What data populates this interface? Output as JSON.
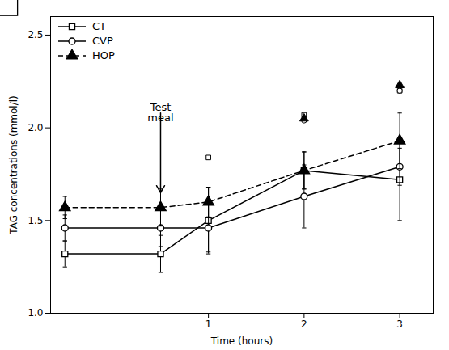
{
  "chart_data": {
    "type": "line",
    "xlabel": "Time (hours)",
    "ylabel": "TAG concentrations (mmol/l)",
    "xlim": [
      -0.65,
      3.35
    ],
    "xticks": [
      1,
      2,
      3
    ],
    "ylim": [
      1.0,
      2.6
    ],
    "yticks": [
      {
        "value": 1.0,
        "label": "1.0"
      },
      1.5,
      {
        "value": 2.0,
        "label": "2.0"
      },
      2.5
    ],
    "grid": false,
    "legend": "upper left",
    "x": [
      -0.5,
      0.5,
      1,
      2,
      3
    ],
    "series": [
      {
        "name": "CT",
        "type": "line",
        "color": "black",
        "marker": "square-open",
        "line_style": "solid",
        "values": [
          1.32,
          1.32,
          1.5,
          1.77,
          1.72
        ],
        "yerr": [
          0.07,
          0.1,
          0.18,
          0.1,
          0.22
        ]
      },
      {
        "name": "CVP",
        "type": "line",
        "color": "black",
        "marker": "circle-open",
        "line_style": "solid",
        "values": [
          1.46,
          1.46,
          1.46,
          1.63,
          1.79
        ],
        "yerr": [
          0.07,
          0.1,
          0.13,
          0.17,
          0.1
        ]
      },
      {
        "name": "HOP",
        "type": "line",
        "color": "black",
        "marker": "triangle-filled",
        "line_style": "dashed",
        "values": [
          1.57,
          1.57,
          1.6,
          1.77,
          1.93
        ],
        "yerr": [
          0.06,
          0.1,
          0.08,
          0.1,
          0.15
        ]
      },
      {
        "type": "scatter",
        "color": "black",
        "marker": "square-open",
        "x": [
          1,
          2,
          3
        ],
        "values": [
          1.84,
          2.07,
          2.2
        ]
      },
      {
        "type": "scatter",
        "color": "black",
        "marker": "circle-open",
        "x": [
          2,
          3
        ],
        "values": [
          2.04,
          2.2
        ]
      },
      {
        "type": "scatter",
        "color": "black",
        "marker": "triangle-filled",
        "x": [
          2,
          3
        ],
        "values": [
          2.05,
          2.23
        ]
      }
    ],
    "annotations": [
      {
        "text": "Test\nmeal",
        "x": 0.5,
        "y": 2.08,
        "arrow_x": 0.5,
        "arrow_y": 1.65
      }
    ]
  }
}
